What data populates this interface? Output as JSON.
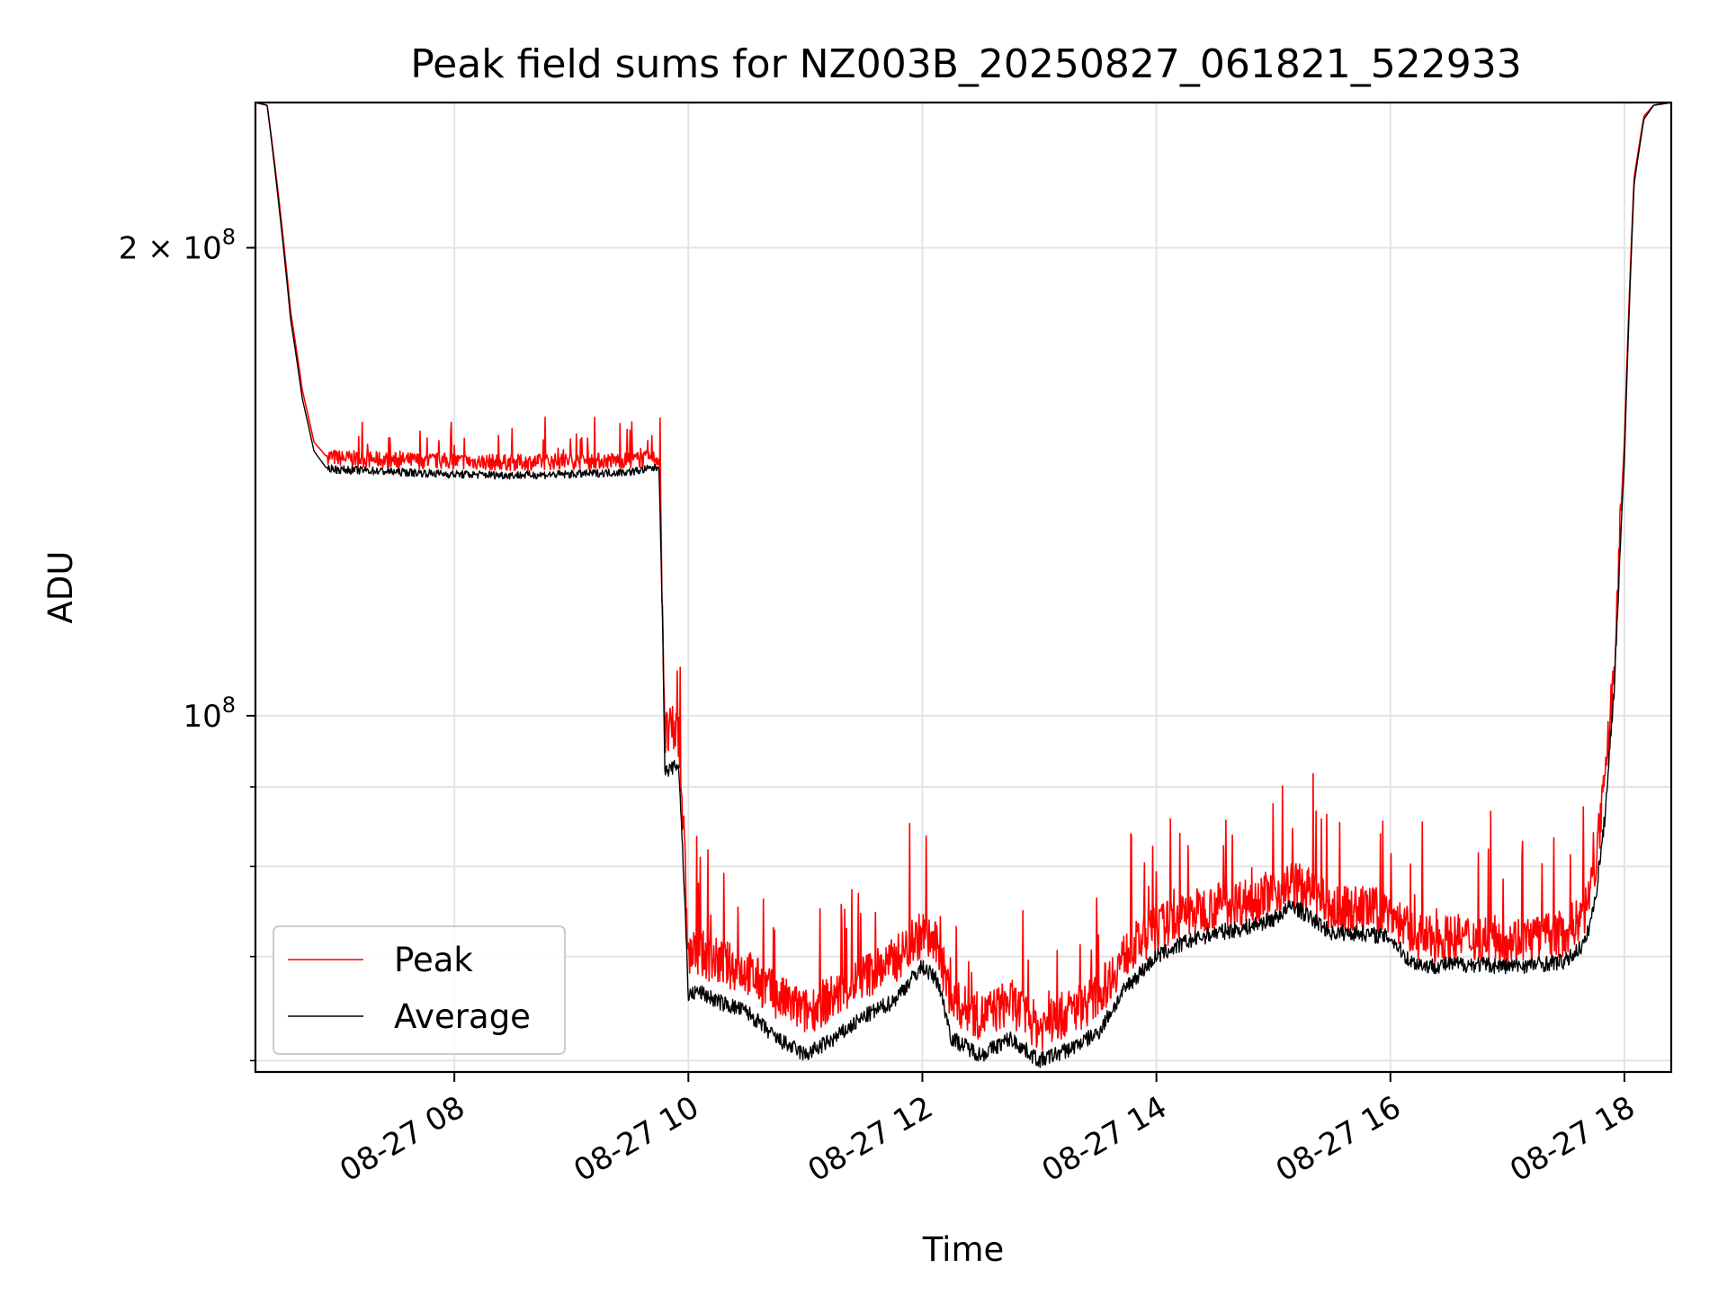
{
  "chart_data": {
    "type": "line",
    "title": "Peak field sums for NZ003B_20250827_061821_522933",
    "xlabel": "Time",
    "ylabel": "ADU",
    "y_scale": "log",
    "xlim": [
      "2025-08-27 06:18",
      "2025-08-27 18:24"
    ],
    "ylim": [
      59000000,
      248000000
    ],
    "x_ticks": [
      "08-27 08",
      "08-27 10",
      "08-27 12",
      "08-27 14",
      "08-27 16",
      "08-27 18"
    ],
    "x_tick_times": [
      "2025-08-27 08:00",
      "2025-08-27 10:00",
      "2025-08-27 12:00",
      "2025-08-27 14:00",
      "2025-08-27 16:00",
      "2025-08-27 18:00"
    ],
    "y_major_ticks": [
      {
        "value": 200000000,
        "mantissa": "2",
        "exponent": "8"
      },
      {
        "value": 100000000,
        "mantissa": "10",
        "exponent": "8"
      }
    ],
    "y_minor_ticks": [
      60000000,
      70000000,
      80000000,
      90000000
    ],
    "grid": true,
    "legend_position": "lower-left",
    "series": [
      {
        "name": "Peak",
        "color": "#ff0000",
        "x": [
          "06:18",
          "06:24",
          "06:30",
          "06:36",
          "06:42",
          "06:48",
          "06:54",
          "07:00",
          "07:15",
          "07:30",
          "08:00",
          "08:30",
          "09:00",
          "09:30",
          "09:45",
          "09:48",
          "09:55",
          "10:00",
          "10:05",
          "10:15",
          "10:30",
          "10:45",
          "11:00",
          "11:15",
          "11:30",
          "11:45",
          "12:00",
          "12:08",
          "12:15",
          "12:30",
          "12:45",
          "13:00",
          "13:15",
          "13:30",
          "13:45",
          "14:00",
          "14:15",
          "14:30",
          "14:45",
          "15:00",
          "15:10",
          "15:20",
          "15:30",
          "15:45",
          "16:00",
          "16:10",
          "16:20",
          "16:30",
          "16:45",
          "17:00",
          "17:15",
          "17:30",
          "17:40",
          "17:45",
          "17:50",
          "17:55",
          "18:00",
          "18:05",
          "18:10",
          "18:15",
          "18:24"
        ],
        "y": [
          248000000,
          247000000,
          215000000,
          182000000,
          162000000,
          150000000,
          147000000,
          146500000,
          146200000,
          146000000,
          145800000,
          145500000,
          145800000,
          146000000,
          146500000,
          97000000,
          98000000,
          70000000,
          70500000,
          69500000,
          68500000,
          66000000,
          64500000,
          66000000,
          68000000,
          69500000,
          72500000,
          71000000,
          65500000,
          64000000,
          65500000,
          63000000,
          64500000,
          66000000,
          70500000,
          73000000,
          74500000,
          75500000,
          76000000,
          77000000,
          78000000,
          77000000,
          75000000,
          75200000,
          74800000,
          72500000,
          71800000,
          72000000,
          72000000,
          71800000,
          72000000,
          72500000,
          75000000,
          80000000,
          90000000,
          108000000,
          150000000,
          222000000,
          243000000,
          247000000,
          248000000
        ]
      },
      {
        "name": "Average",
        "color": "#000000",
        "x": [
          "06:18",
          "06:24",
          "06:30",
          "06:36",
          "06:42",
          "06:48",
          "06:54",
          "07:00",
          "07:15",
          "07:30",
          "08:00",
          "08:30",
          "09:00",
          "09:30",
          "09:45",
          "09:48",
          "09:55",
          "10:00",
          "10:05",
          "10:15",
          "10:30",
          "10:45",
          "11:00",
          "11:15",
          "11:30",
          "11:45",
          "12:00",
          "12:08",
          "12:15",
          "12:30",
          "12:45",
          "13:00",
          "13:15",
          "13:30",
          "13:45",
          "14:00",
          "14:15",
          "14:30",
          "14:45",
          "15:00",
          "15:10",
          "15:20",
          "15:30",
          "15:45",
          "16:00",
          "16:10",
          "16:20",
          "16:30",
          "16:45",
          "17:00",
          "17:15",
          "17:30",
          "17:40",
          "17:45",
          "17:50",
          "17:55",
          "18:00",
          "18:05",
          "18:10",
          "18:15",
          "18:24"
        ],
        "y": [
          248000000,
          247000000,
          213000000,
          180000000,
          160000000,
          148000000,
          144500000,
          144000000,
          143800000,
          143500000,
          143000000,
          142800000,
          143000000,
          143500000,
          144500000,
          92000000,
          93000000,
          66000000,
          66500000,
          65500000,
          64500000,
          62000000,
          60500000,
          62000000,
          64000000,
          65500000,
          69000000,
          67500000,
          62000000,
          60500000,
          62000000,
          60000000,
          61000000,
          62500000,
          67000000,
          70000000,
          71500000,
          72500000,
          73000000,
          74000000,
          75500000,
          74000000,
          72500000,
          72500000,
          72000000,
          69500000,
          69000000,
          69200000,
          69200000,
          69000000,
          69200000,
          69500000,
          71500000,
          76000000,
          86000000,
          105000000,
          146000000,
          220000000,
          242000000,
          247000000,
          248000000
        ]
      }
    ]
  }
}
